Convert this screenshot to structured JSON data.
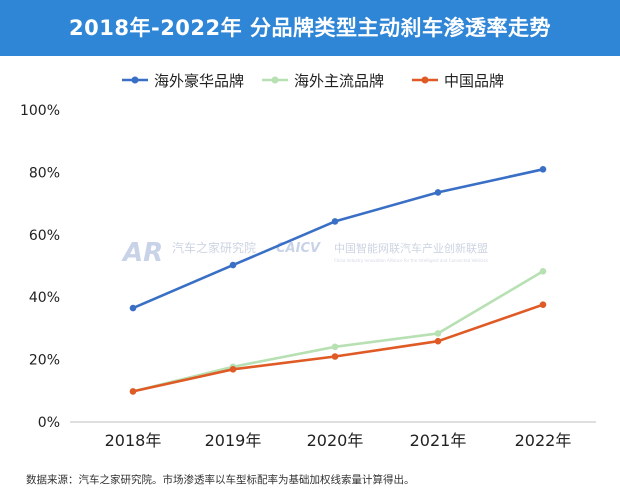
{
  "header": {
    "title": "2018年-2022年 分品牌类型主动刹车渗透率走势"
  },
  "footer": {
    "source": "数据来源：汽车之家研究院。市场渗透率以车型标配率为基础加权线索量计算得出。"
  },
  "watermark": {
    "ar_logo": "AR",
    "ar_text": "汽车之家研究院",
    "caicv_logo": "CAICV",
    "caicv_text": "中国智能网联汽车产业创新联盟",
    "caicv_subtext": "China Industry Innovation Alliance for the Intelligent and Connected Vehicles"
  },
  "chart_data": {
    "type": "line",
    "title": "2018年-2022年 分品牌类型主动刹车渗透率走势",
    "xlabel": "",
    "ylabel": "",
    "categories": [
      "2018年",
      "2019年",
      "2020年",
      "2021年",
      "2022年"
    ],
    "ylim": [
      0,
      100
    ],
    "yticks": [
      0,
      20,
      40,
      60,
      80,
      100
    ],
    "ytick_labels": [
      "0%",
      "20%",
      "40%",
      "60%",
      "80%",
      "100%"
    ],
    "grid": false,
    "legend_position": "top",
    "series": [
      {
        "name": "海外豪华品牌",
        "color": "#3a6fc6",
        "values": [
          36.5,
          50.3,
          64.3,
          73.6,
          81.0
        ]
      },
      {
        "name": "海外主流品牌",
        "color": "#b7e0b3",
        "values": [
          9.8,
          17.7,
          24.1,
          28.4,
          48.3
        ]
      },
      {
        "name": "中国品牌",
        "color": "#df5a25",
        "values": [
          9.8,
          16.9,
          21.0,
          25.9,
          37.6
        ]
      }
    ]
  }
}
